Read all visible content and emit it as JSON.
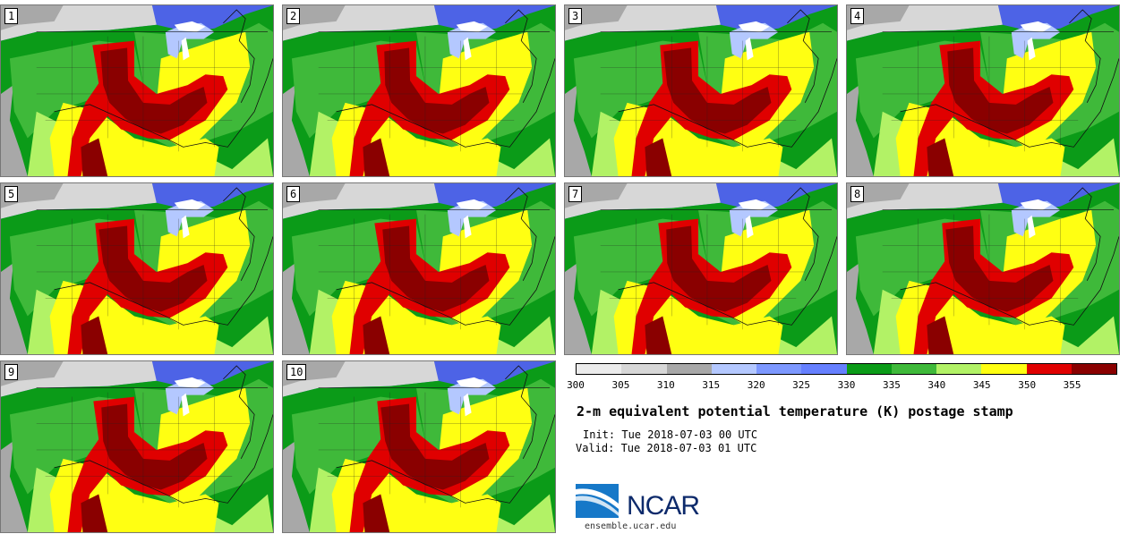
{
  "panels": [
    {
      "label": "1"
    },
    {
      "label": "2"
    },
    {
      "label": "3"
    },
    {
      "label": "4"
    },
    {
      "label": "5"
    },
    {
      "label": "6"
    },
    {
      "label": "7"
    },
    {
      "label": "8"
    },
    {
      "label": "9"
    },
    {
      "label": "10"
    }
  ],
  "colorbar": {
    "ticks": [
      "300",
      "305",
      "310",
      "315",
      "320",
      "325",
      "330",
      "335",
      "340",
      "345",
      "350",
      "355"
    ],
    "colors": [
      "#ececec",
      "#d7d7d7",
      "#a8a8a8",
      "#b4c8ff",
      "#7d98ff",
      "#6680ff",
      "#0b9b18",
      "#3fb93a",
      "#b2f266",
      "#ffff12",
      "#e00000",
      "#8a0000"
    ]
  },
  "title": "2-m equivalent potential temperature (K) postage stamp",
  "init": "Init: Tue 2018-07-03 00 UTC",
  "valid": "Valid: Tue 2018-07-03 01 UTC",
  "logo": {
    "text": "NCAR",
    "url": "ensemble.ucar.edu"
  }
}
